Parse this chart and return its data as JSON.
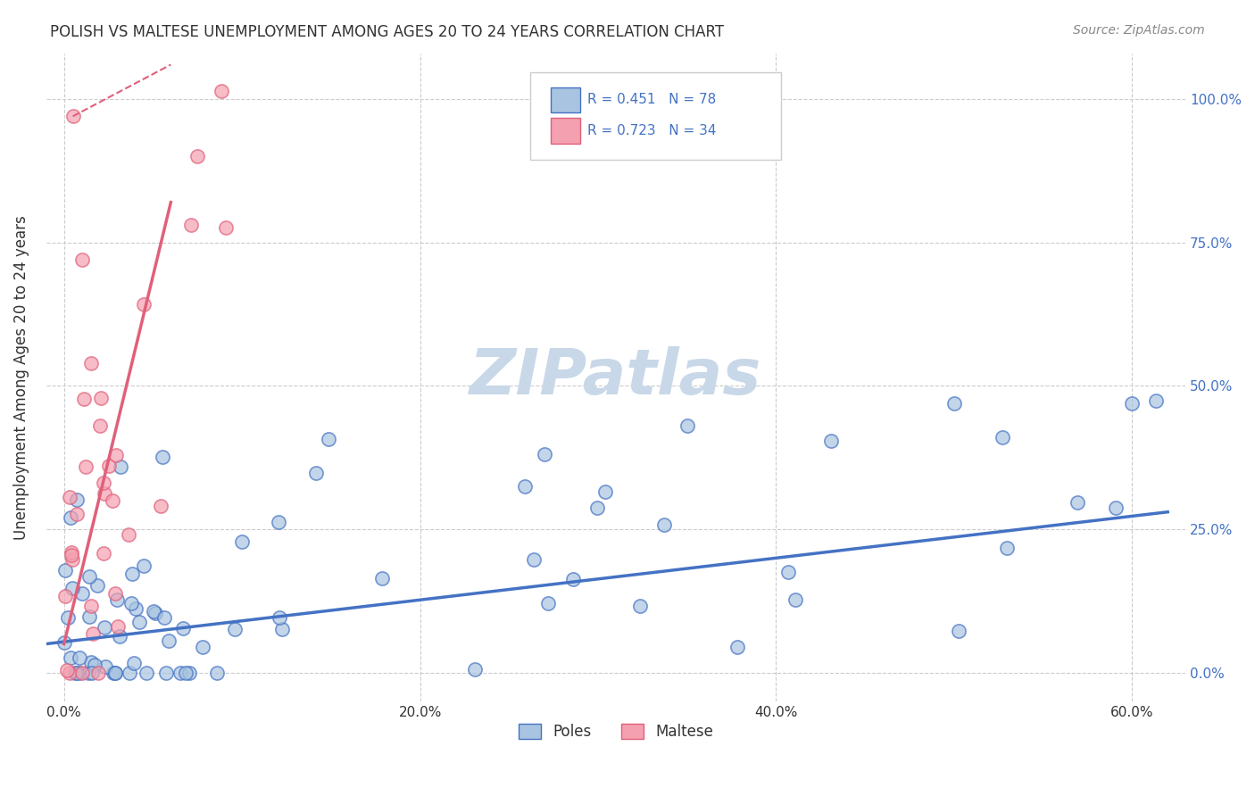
{
  "title": "POLISH VS MALTESE UNEMPLOYMENT AMONG AGES 20 TO 24 YEARS CORRELATION CHART",
  "source": "Source: ZipAtlas.com",
  "ylabel": "Unemployment Among Ages 20 to 24 years",
  "xlim": [
    -0.01,
    0.63
  ],
  "ylim": [
    -0.05,
    1.08
  ],
  "poles_color": "#a8c4e0",
  "maltese_color": "#f4a0b0",
  "poles_line_color": "#4472c4",
  "maltese_line_color": "#e0607a",
  "poles_R": 0.451,
  "poles_N": 78,
  "maltese_R": 0.723,
  "maltese_N": 34,
  "watermark_color": "#c8d8e8",
  "background_color": "#ffffff",
  "grid_color": "#cccccc",
  "legend_text_color": "#4472c4"
}
